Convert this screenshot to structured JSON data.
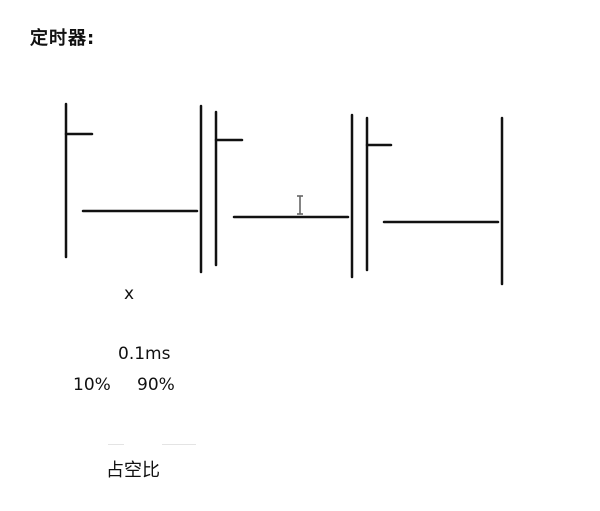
{
  "title": "定时器:",
  "labels": {
    "x": "x",
    "period": "0.1ms",
    "duty_low": "10%",
    "duty_high": "90%",
    "caption": "占空比"
  },
  "colors": {
    "ink": "#111111",
    "cursor": "#666666"
  },
  "cursor_icon": "text-cursor-icon"
}
